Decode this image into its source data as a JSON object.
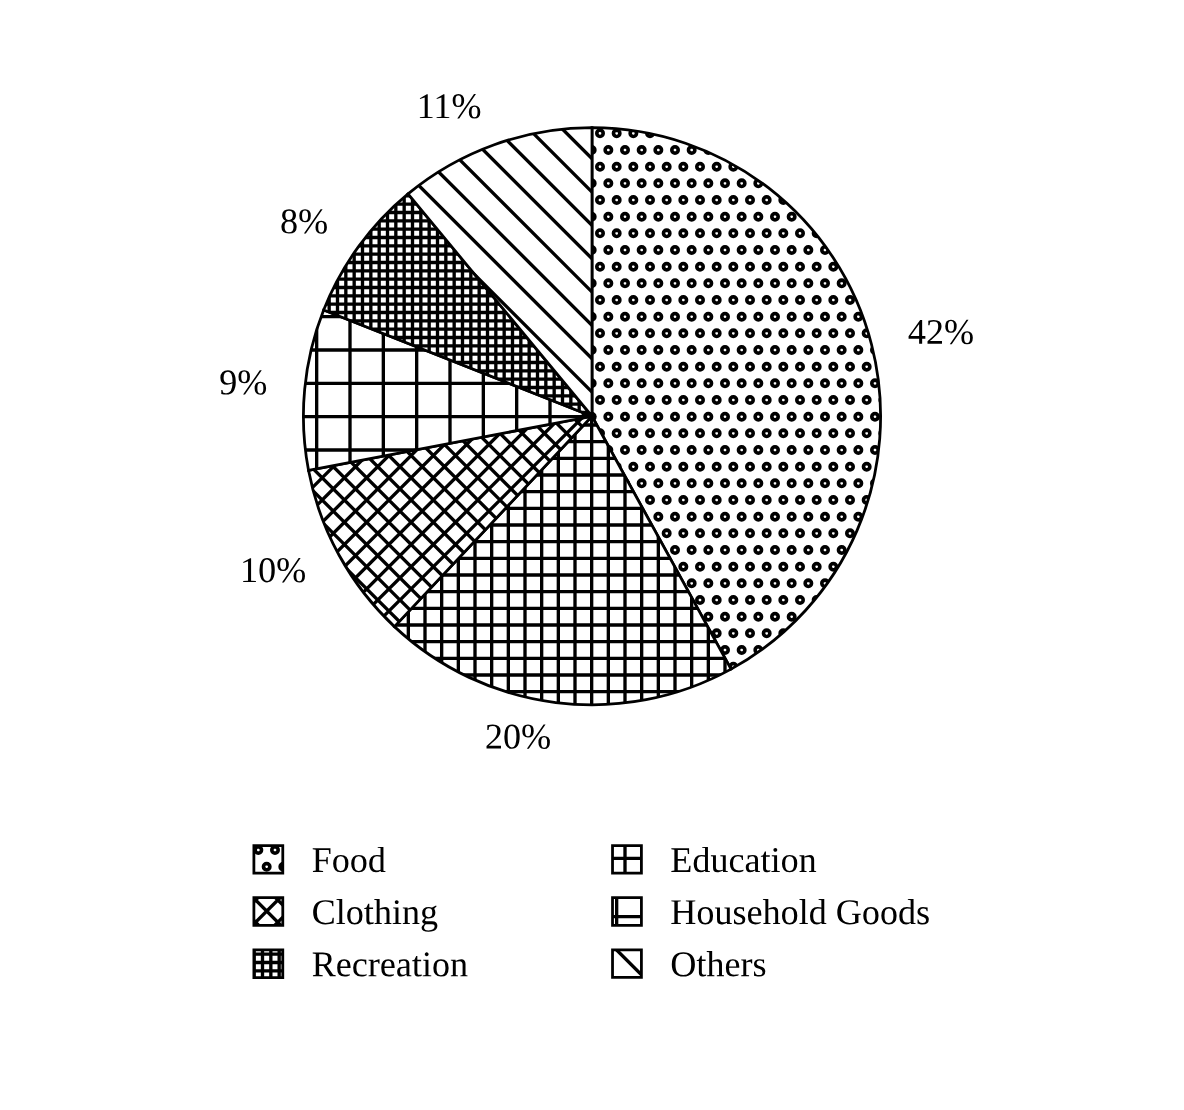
{
  "chart_data": {
    "type": "pie",
    "categories": [
      "Food",
      "Education",
      "Clothing",
      "Household Goods",
      "Recreation",
      "Others"
    ],
    "values": [
      42,
      20,
      10,
      9,
      8,
      11
    ],
    "colors": [
      "#000000",
      "#000000",
      "#000000",
      "#000000",
      "#000000",
      "#000000"
    ],
    "value_labels": [
      "42%",
      "20%",
      "10%",
      "9%",
      "8%",
      "11%"
    ],
    "legend": "bottom"
  }
}
